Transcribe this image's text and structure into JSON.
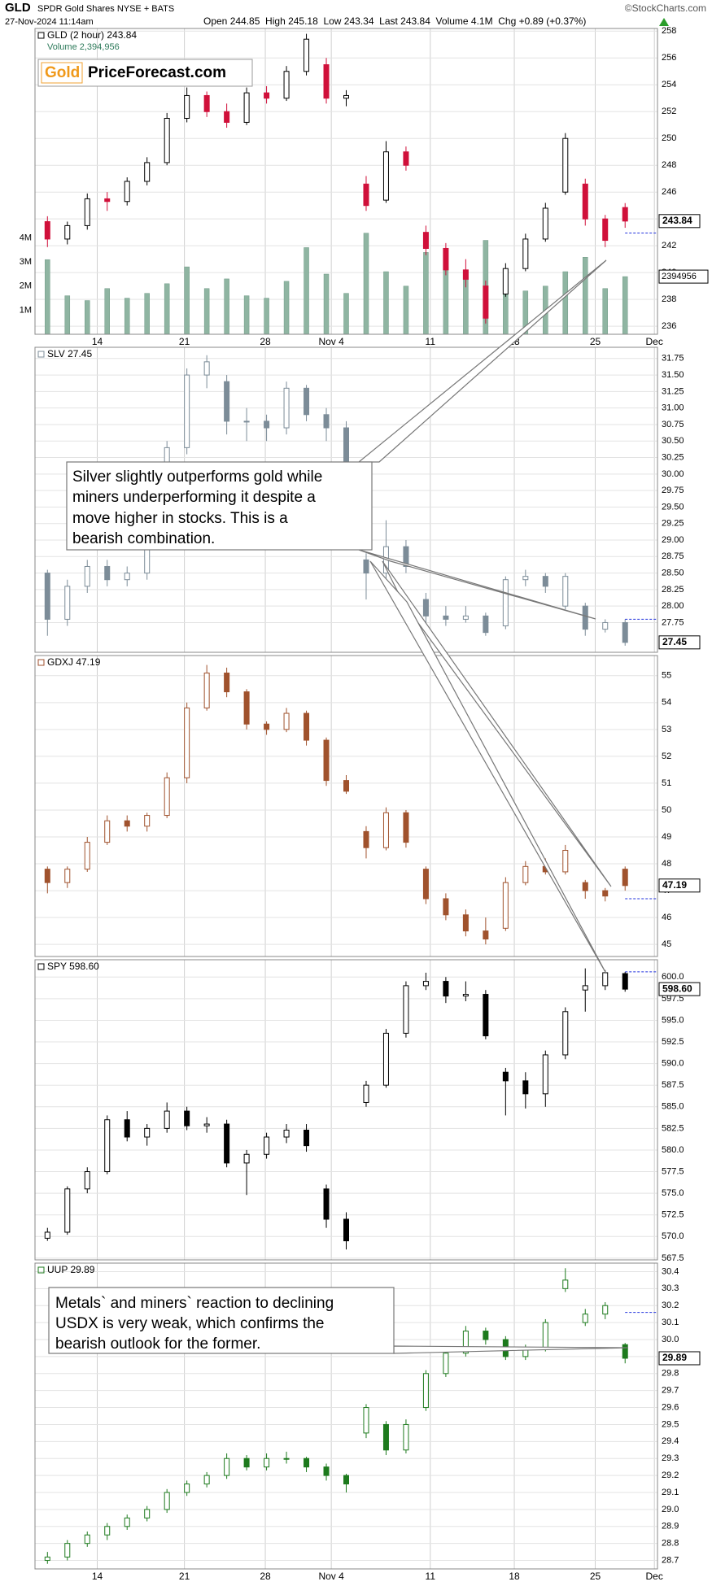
{
  "header": {
    "symbol": "GLD",
    "name": "SPDR Gold Shares NYSE + BATS",
    "source": "©StockCharts.com",
    "date": "27-Nov-2024 11:14am",
    "quote": "Open 244.85  High 245.18  Low 243.34  Last 243.84  Volume 4.1M  Chg +0.89 (+0.37%)"
  },
  "logo": {
    "left": "Gold",
    "right": "PriceForecast.com"
  },
  "annotations": [
    {
      "lines": [
        "Silver slightly outperforms gold while",
        "miners underperforming it despite a",
        "move higher in stocks. This is a",
        "bearish combination."
      ]
    },
    {
      "lines": [
        "Metals` and miners` reaction to declining",
        "USDX is very weak, which confirms the",
        "bearish outlook for the former."
      ]
    }
  ],
  "chart_data": [
    {
      "type": "candlestick",
      "legend": "GLD (2 hour) 243.84",
      "volume_legend": "Volume 2,394,956",
      "up_color": "#000000",
      "down_color": "#d0103a",
      "volume_color": "#8fb5a2",
      "xlim": [
        0,
        100
      ],
      "xticks": [
        {
          "value": 10,
          "label": "14"
        },
        {
          "value": 24,
          "label": "21"
        },
        {
          "value": 37,
          "label": "28"
        },
        {
          "value": 47.6,
          "label": "Nov 4"
        },
        {
          "value": 63.5,
          "label": "11"
        },
        {
          "value": 77,
          "label": "18"
        },
        {
          "value": 90,
          "label": "25"
        },
        {
          "value": 99.5,
          "label": "Dec"
        }
      ],
      "ylim": [
        235.4,
        258.2
      ],
      "yticks": [
        236,
        238,
        240,
        242,
        244,
        246,
        248,
        250,
        252,
        254,
        256,
        258
      ],
      "vlim": [
        0,
        12700000
      ],
      "vticks": [
        {
          "value": 1000000,
          "label": "1M"
        },
        {
          "value": 2000000,
          "label": "2M"
        },
        {
          "value": 3000000,
          "label": "3M"
        },
        {
          "value": 4000000,
          "label": "4M"
        }
      ],
      "x": [
        2,
        5.2,
        8.4,
        11.6,
        14.8,
        18,
        21.2,
        24.4,
        27.6,
        30.8,
        34,
        37.2,
        40.4,
        43.6,
        46.8,
        50,
        53.2,
        56.4,
        59.6,
        62.8,
        66,
        69.2,
        72.4,
        75.6,
        78.8,
        82,
        85.2,
        88.4,
        91.6,
        94.8
      ],
      "open": [
        243.8,
        242.5,
        243.5,
        245.5,
        245.3,
        246.8,
        248.2,
        251.5,
        253.2,
        252.0,
        251.2,
        253.4,
        253.0,
        255.0,
        255.5,
        253.0,
        246.6,
        245.4,
        249.0,
        243.0,
        241.8,
        240.2,
        239.0,
        238.4,
        240.3,
        242.5,
        246.0,
        246.6,
        244.0,
        244.85
      ],
      "high": [
        244.2,
        243.8,
        245.9,
        246.0,
        247.1,
        248.6,
        251.9,
        253.8,
        253.5,
        252.6,
        253.8,
        253.9,
        255.4,
        257.8,
        256.0,
        253.6,
        247.2,
        249.8,
        249.4,
        243.5,
        242.2,
        241.0,
        239.4,
        240.7,
        242.9,
        245.2,
        250.4,
        247.0,
        244.3,
        245.18
      ],
      "low": [
        241.9,
        242.1,
        243.2,
        244.6,
        245.0,
        246.5,
        248.0,
        251.2,
        251.6,
        250.8,
        251.0,
        252.6,
        252.8,
        254.7,
        252.6,
        252.4,
        244.6,
        245.2,
        247.6,
        241.3,
        239.8,
        238.9,
        236.2,
        238.2,
        240.1,
        242.3,
        245.8,
        243.5,
        241.9,
        243.34
      ],
      "close": [
        242.5,
        243.5,
        245.5,
        245.3,
        246.8,
        248.2,
        251.5,
        253.2,
        252.0,
        251.2,
        253.4,
        253.0,
        255.0,
        257.4,
        253.0,
        253.2,
        245.0,
        249.0,
        248.0,
        241.8,
        240.2,
        239.5,
        236.6,
        240.3,
        242.5,
        244.8,
        250.0,
        244.0,
        242.4,
        243.84
      ],
      "volume": [
        3100000,
        1600000,
        1400000,
        1900000,
        1500000,
        1700000,
        2100000,
        2800000,
        1900000,
        2300000,
        1600000,
        1500000,
        2200000,
        3600000,
        2500000,
        1700000,
        4200000,
        2600000,
        2000000,
        3400000,
        2800000,
        2400000,
        3900000,
        2100000,
        1800000,
        2000000,
        2600000,
        3200000,
        1900000,
        2394956
      ],
      "ref_line": 242.95,
      "last": 243.84,
      "volume_last": 2394956
    },
    {
      "type": "candlestick",
      "legend": "SLV 27.45",
      "up_color": "#7c8c98",
      "down_color": "#7c8c98",
      "xlim": [
        0,
        100
      ],
      "ylim": [
        27.3,
        31.92
      ],
      "yticks": [
        27.75,
        {
          "value": 28,
          "label": "28.00"
        },
        28.25,
        {
          "value": 28.5,
          "label": "28.50"
        },
        28.75,
        {
          "value": 29,
          "label": "29.00"
        },
        29.25,
        {
          "value": 29.5,
          "label": "29.50"
        },
        29.75,
        {
          "value": 30,
          "label": "30.00"
        },
        30.25,
        {
          "value": 30.5,
          "label": "30.50"
        },
        30.75,
        {
          "value": 31,
          "label": "31.00"
        },
        31.25,
        {
          "value": 31.5,
          "label": "31.50"
        },
        31.75
      ],
      "x": [
        2,
        5.2,
        8.4,
        11.6,
        14.8,
        18,
        21.2,
        24.4,
        27.6,
        30.8,
        34,
        37.2,
        40.4,
        43.6,
        46.8,
        50,
        53.2,
        56.4,
        59.6,
        62.8,
        66,
        69.2,
        72.4,
        75.6,
        78.8,
        82,
        85.2,
        88.4,
        91.6,
        94.8
      ],
      "open": [
        28.5,
        27.8,
        28.3,
        28.6,
        28.4,
        28.5,
        29.0,
        30.4,
        31.5,
        31.4,
        30.8,
        30.8,
        30.7,
        31.3,
        30.9,
        30.7,
        28.7,
        28.5,
        28.9,
        28.1,
        27.85,
        27.8,
        27.85,
        27.7,
        28.4,
        28.45,
        28.0,
        28.0,
        27.65,
        27.75
      ],
      "high": [
        28.55,
        28.4,
        28.7,
        28.7,
        28.6,
        29.1,
        30.5,
        31.6,
        31.8,
        31.5,
        31.0,
        30.9,
        31.4,
        31.35,
        31.0,
        30.8,
        28.8,
        29.3,
        29.0,
        28.2,
        28.0,
        28.0,
        27.9,
        28.45,
        28.55,
        28.5,
        28.5,
        28.05,
        27.8,
        27.8
      ],
      "low": [
        27.55,
        27.7,
        28.2,
        28.3,
        28.3,
        28.4,
        28.9,
        30.3,
        31.3,
        30.6,
        30.5,
        30.5,
        30.6,
        30.8,
        30.5,
        29.9,
        28.1,
        28.4,
        28.5,
        27.7,
        27.7,
        27.75,
        27.55,
        27.65,
        28.3,
        28.2,
        27.95,
        27.55,
        27.6,
        27.4
      ],
      "close": [
        27.8,
        28.3,
        28.6,
        28.4,
        28.5,
        29.0,
        30.4,
        31.5,
        31.7,
        30.8,
        30.8,
        30.7,
        31.3,
        30.9,
        30.7,
        30.0,
        28.5,
        28.9,
        28.6,
        27.85,
        27.8,
        27.85,
        27.6,
        28.4,
        28.45,
        28.3,
        28.45,
        27.65,
        27.75,
        27.45
      ],
      "ref_line": 27.8,
      "last": 27.45
    },
    {
      "type": "candlestick",
      "legend": "GDXJ 47.19",
      "up_color": "#a0522d",
      "down_color": "#a0522d",
      "xlim": [
        0,
        100
      ],
      "ylim": [
        44.55,
        55.75
      ],
      "yticks": [
        45,
        46,
        47,
        48,
        49,
        50,
        51,
        52,
        53,
        54,
        55
      ],
      "x": [
        2,
        5.2,
        8.4,
        11.6,
        14.8,
        18,
        21.2,
        24.4,
        27.6,
        30.8,
        34,
        37.2,
        40.4,
        43.6,
        46.8,
        50,
        53.2,
        56.4,
        59.6,
        62.8,
        66,
        69.2,
        72.4,
        75.6,
        78.8,
        82,
        85.2,
        88.4,
        91.6,
        94.8
      ],
      "open": [
        47.8,
        47.3,
        47.8,
        48.8,
        49.6,
        49.4,
        49.8,
        51.2,
        53.8,
        55.1,
        54.4,
        53.2,
        53.0,
        53.6,
        52.6,
        51.1,
        49.2,
        48.6,
        49.9,
        47.8,
        46.7,
        46.1,
        45.5,
        45.6,
        47.3,
        47.9,
        47.7,
        47.3,
        47.0,
        47.8
      ],
      "high": [
        47.9,
        47.9,
        49.0,
        49.8,
        49.8,
        49.9,
        51.4,
        54.0,
        55.4,
        55.3,
        54.5,
        53.3,
        53.8,
        53.7,
        52.7,
        51.3,
        49.4,
        50.1,
        50.0,
        47.9,
        46.9,
        46.3,
        46.0,
        47.5,
        48.1,
        48.2,
        48.7,
        47.4,
        47.1,
        47.9
      ],
      "low": [
        46.9,
        47.1,
        47.7,
        48.7,
        49.2,
        49.2,
        49.7,
        51.0,
        53.7,
        54.2,
        53.0,
        52.8,
        52.9,
        52.4,
        50.9,
        50.6,
        48.2,
        48.5,
        48.6,
        46.5,
        45.9,
        45.3,
        45.0,
        45.5,
        47.2,
        47.6,
        47.6,
        46.7,
        46.6,
        47.0
      ],
      "close": [
        47.3,
        47.8,
        48.8,
        49.6,
        49.4,
        49.8,
        51.2,
        53.8,
        55.1,
        54.4,
        53.2,
        53.0,
        53.6,
        52.6,
        51.1,
        50.7,
        48.6,
        49.9,
        48.8,
        46.7,
        46.1,
        45.5,
        45.2,
        47.3,
        47.9,
        47.7,
        48.5,
        47.0,
        46.8,
        47.19
      ],
      "ref_line": 46.7,
      "last": 47.19
    },
    {
      "type": "candlestick",
      "legend": "SPY 598.60",
      "up_color": "#000000",
      "down_color": "#000000",
      "xlim": [
        0,
        100
      ],
      "ylim": [
        567.3,
        602
      ],
      "yticks": [
        {
          "value": 600,
          "label": "600.0"
        },
        597.5,
        {
          "value": 595,
          "label": "595.0"
        },
        592.5,
        {
          "value": 590,
          "label": "590.0"
        },
        587.5,
        {
          "value": 585,
          "label": "585.0"
        },
        582.5,
        {
          "value": 580,
          "label": "580.0"
        },
        577.5,
        {
          "value": 575,
          "label": "575.0"
        },
        572.5,
        {
          "value": 570,
          "label": "570.0"
        },
        567.5
      ],
      "x": [
        2,
        5.2,
        8.4,
        11.6,
        14.8,
        18,
        21.2,
        24.4,
        27.6,
        30.8,
        34,
        37.2,
        40.4,
        43.6,
        46.8,
        50,
        53.2,
        56.4,
        59.6,
        62.8,
        66,
        69.2,
        72.4,
        75.6,
        78.8,
        82,
        85.2,
        88.4,
        91.6,
        94.8
      ],
      "open": [
        569.8,
        570.5,
        575.5,
        577.5,
        583.5,
        581.5,
        582.5,
        584.5,
        582.8,
        583.0,
        578.5,
        579.5,
        581.5,
        582.3,
        575.5,
        572.0,
        585.5,
        587.5,
        593.5,
        599.0,
        599.5,
        597.8,
        598.0,
        589.0,
        588.0,
        586.5,
        591.0,
        598.5,
        599.0,
        600.4
      ],
      "high": [
        571.0,
        575.8,
        578.0,
        584.0,
        584.5,
        583.0,
        585.5,
        585.0,
        583.8,
        583.5,
        580.0,
        582.0,
        583.0,
        583.0,
        576.0,
        572.8,
        588.0,
        594.0,
        599.5,
        600.5,
        600.0,
        599.5,
        598.5,
        589.5,
        589.0,
        591.5,
        596.5,
        601.0,
        600.8,
        600.6
      ],
      "low": [
        569.5,
        570.2,
        575.0,
        577.2,
        581.0,
        580.5,
        582.0,
        582.3,
        582.0,
        578.0,
        574.8,
        579.0,
        580.8,
        579.8,
        571.0,
        568.5,
        585.0,
        587.2,
        593.0,
        598.5,
        597.0,
        597.2,
        592.8,
        584.0,
        584.8,
        585.0,
        590.5,
        596.0,
        598.5,
        598.3
      ],
      "close": [
        570.5,
        575.5,
        577.5,
        583.5,
        581.5,
        582.5,
        584.5,
        582.8,
        583.0,
        578.5,
        579.5,
        581.5,
        582.3,
        580.5,
        572.0,
        569.5,
        587.5,
        593.5,
        599.0,
        599.5,
        597.8,
        598.0,
        593.2,
        588.0,
        586.5,
        591.0,
        596.0,
        599.0,
        600.5,
        598.6
      ],
      "ref_line": 600.6,
      "last": {
        "value": 598.6,
        "label": "598.60"
      }
    },
    {
      "type": "candlestick",
      "legend": "UUP 29.89",
      "up_color": "#1d7a1d",
      "down_color": "#1d7a1d",
      "xlim": [
        0,
        100
      ],
      "xticks": [
        {
          "value": 10,
          "label": "14"
        },
        {
          "value": 24,
          "label": "21"
        },
        {
          "value": 37,
          "label": "28"
        },
        {
          "value": 47.6,
          "label": "Nov 4"
        },
        {
          "value": 63.5,
          "label": "11"
        },
        {
          "value": 77,
          "label": "18"
        },
        {
          "value": 90,
          "label": "25"
        },
        {
          "value": 99.5,
          "label": "Dec"
        }
      ],
      "ylim": [
        28.65,
        30.45
      ],
      "yticks": [
        28.7,
        28.8,
        28.9,
        {
          "value": 29,
          "label": "29.0"
        },
        29.1,
        29.2,
        29.3,
        29.4,
        29.5,
        29.6,
        29.7,
        29.8,
        29.9,
        {
          "value": 30,
          "label": "30.0"
        },
        30.1,
        30.2,
        30.3,
        30.4
      ],
      "x": [
        2,
        5.2,
        8.4,
        11.6,
        14.8,
        18,
        21.2,
        24.4,
        27.6,
        30.8,
        34,
        37.2,
        40.4,
        43.6,
        46.8,
        50,
        53.2,
        56.4,
        59.6,
        62.8,
        66,
        69.2,
        72.4,
        75.6,
        78.8,
        82,
        85.2,
        88.4,
        91.6,
        94.8
      ],
      "open": [
        28.7,
        28.72,
        28.8,
        28.85,
        28.9,
        28.95,
        29.0,
        29.1,
        29.15,
        29.2,
        29.3,
        29.25,
        29.3,
        29.3,
        29.25,
        29.2,
        29.45,
        29.5,
        29.35,
        29.6,
        29.8,
        29.92,
        30.05,
        30.0,
        29.9,
        29.95,
        30.3,
        30.1,
        30.15,
        29.97
      ],
      "high": [
        28.75,
        28.82,
        28.87,
        28.92,
        28.97,
        29.02,
        29.12,
        29.17,
        29.22,
        29.33,
        29.32,
        29.33,
        29.34,
        29.31,
        29.27,
        29.21,
        29.62,
        29.52,
        29.53,
        29.82,
        29.94,
        30.08,
        30.07,
        30.02,
        29.97,
        30.12,
        30.42,
        30.18,
        30.22,
        29.98
      ],
      "low": [
        28.68,
        28.7,
        28.78,
        28.82,
        28.88,
        28.93,
        28.98,
        29.08,
        29.13,
        29.18,
        29.23,
        29.23,
        29.27,
        29.22,
        29.17,
        29.1,
        29.42,
        29.32,
        29.33,
        29.58,
        29.78,
        29.9,
        29.97,
        29.88,
        29.88,
        29.93,
        30.28,
        30.08,
        30.12,
        29.86
      ],
      "close": [
        28.72,
        28.8,
        28.85,
        28.9,
        28.95,
        29.0,
        29.1,
        29.15,
        29.2,
        29.3,
        29.25,
        29.3,
        29.3,
        29.25,
        29.2,
        29.15,
        29.6,
        29.35,
        29.5,
        29.8,
        29.92,
        30.05,
        30.0,
        29.9,
        29.95,
        30.1,
        30.35,
        30.15,
        30.2,
        29.89
      ],
      "ref_line": 30.16,
      "last": 29.89
    }
  ]
}
